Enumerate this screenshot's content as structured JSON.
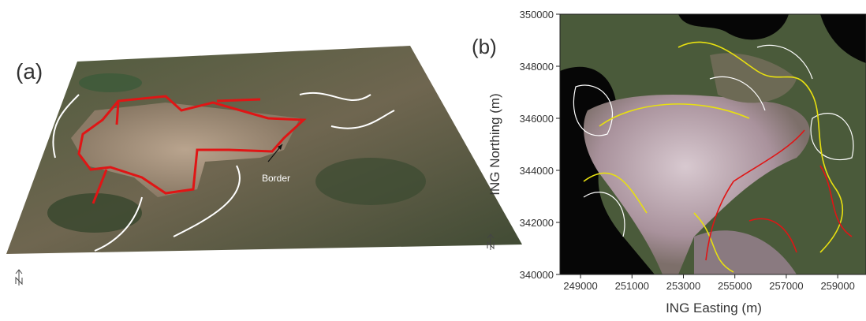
{
  "panel_a": {
    "label": "(a)",
    "annotation": "Border"
  },
  "panel_b": {
    "label": "(b)",
    "xlabel": "ING Easting (m)",
    "ylabel": "ING Northing (m)",
    "xlim": [
      248200,
      260100
    ],
    "ylim": [
      340000,
      350000
    ],
    "xticks": [
      249000,
      251000,
      253000,
      255000,
      257000,
      259000
    ],
    "yticks": [
      340000,
      342000,
      344000,
      346000,
      348000,
      350000
    ]
  }
}
